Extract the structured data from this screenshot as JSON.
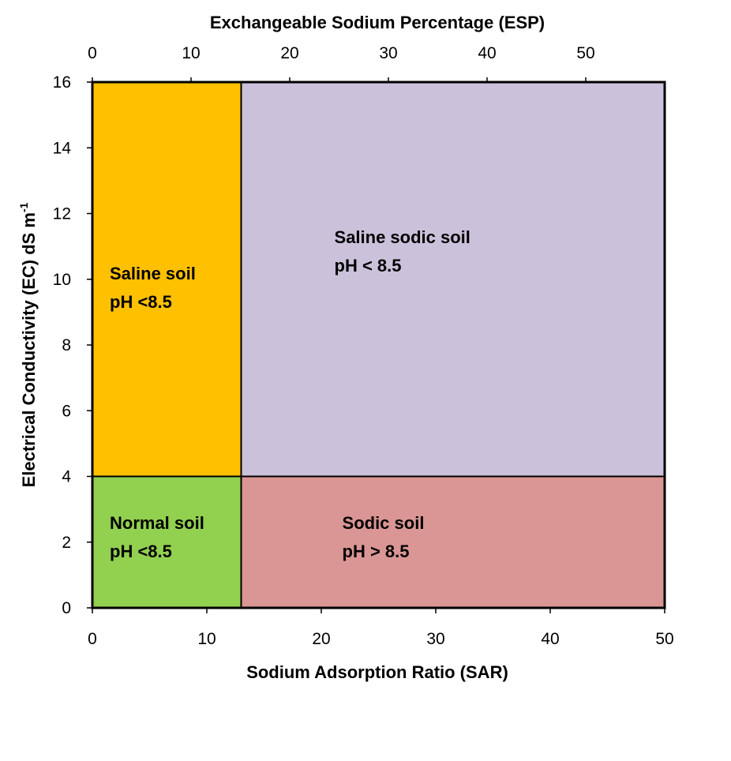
{
  "chart_data": {
    "type": "classification-diagram",
    "title": "",
    "top_axis": {
      "label": "Exchangeable Sodium Percentage (ESP)",
      "ticks": [
        "0",
        "10",
        "20",
        "30",
        "40",
        "50"
      ],
      "range": [
        0,
        58
      ]
    },
    "x_axis": {
      "label": "Sodium Adsorption Ratio (SAR)",
      "ticks": [
        "0",
        "10",
        "20",
        "30",
        "40",
        "50"
      ],
      "range": [
        0,
        50
      ]
    },
    "y_axis": {
      "label": "Electrical Conductivity (EC) dS m",
      "label_superscript": "-1",
      "ticks": [
        "0",
        "2",
        "4",
        "6",
        "8",
        "10",
        "12",
        "14",
        "16"
      ],
      "range": [
        0,
        16
      ]
    },
    "thresholds": {
      "sar": 13,
      "ec": 4
    },
    "regions": [
      {
        "name": "Saline soil",
        "ph": "pH <8.5",
        "sar_range": [
          0,
          13
        ],
        "ec_range": [
          4,
          16
        ],
        "color": "#FFC000"
      },
      {
        "name": "Saline sodic soil",
        "ph": "pH < 8.5",
        "sar_range": [
          13,
          50
        ],
        "ec_range": [
          4,
          16
        ],
        "color": "#CCC1DA"
      },
      {
        "name": "Normal soil",
        "ph": "pH <8.5",
        "sar_range": [
          0,
          13
        ],
        "ec_range": [
          0,
          4
        ],
        "color": "#92D050"
      },
      {
        "name": "Sodic soil",
        "ph": "pH > 8.5",
        "sar_range": [
          13,
          50
        ],
        "ec_range": [
          0,
          4
        ],
        "color": "#D99694"
      }
    ],
    "grid": false,
    "legend": "none"
  }
}
